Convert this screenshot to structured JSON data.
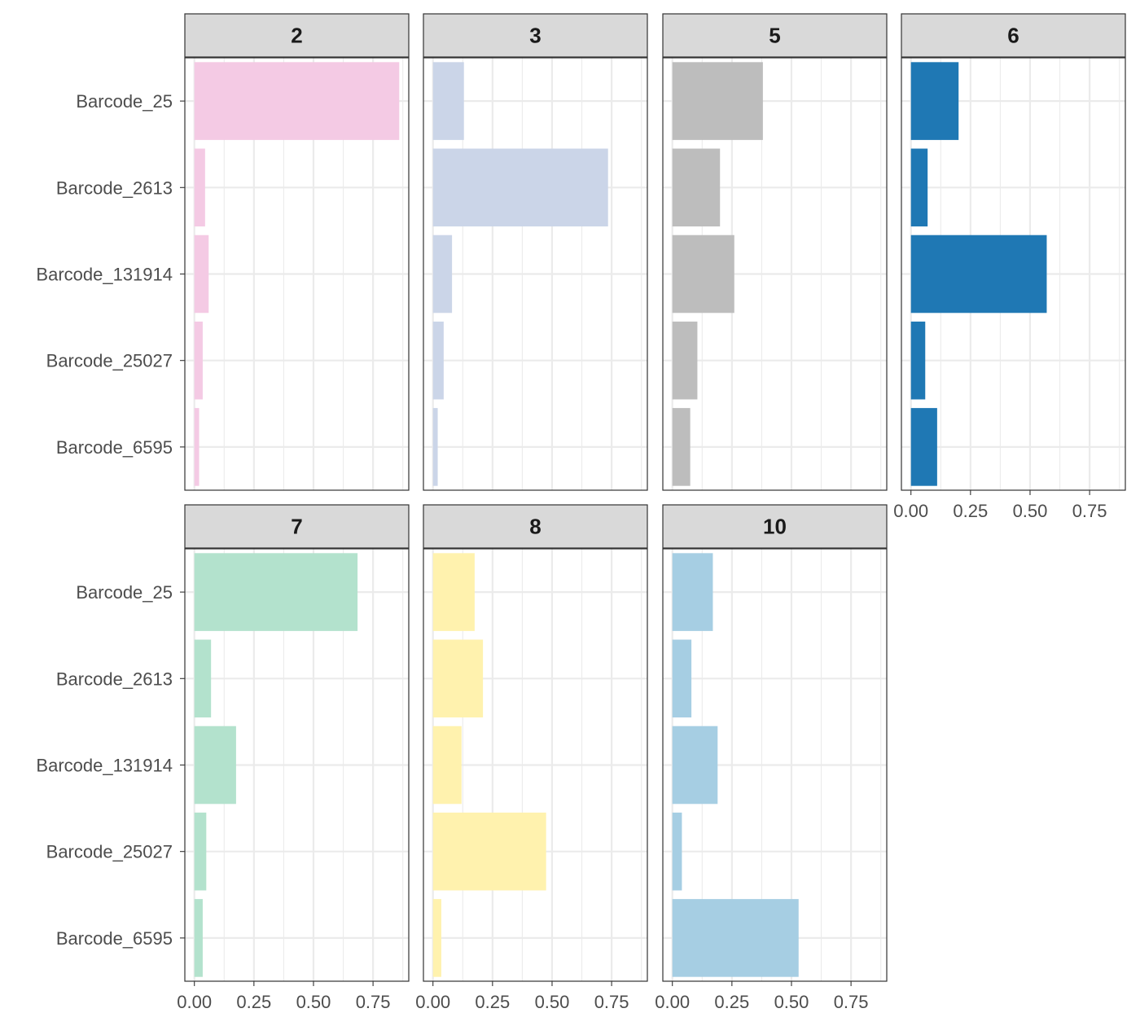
{
  "chart_data": {
    "type": "bar",
    "orientation": "horizontal",
    "facet_layout": "wrap",
    "categories": [
      "Barcode_25",
      "Barcode_2613",
      "Barcode_131914",
      "Barcode_25027",
      "Barcode_6595"
    ],
    "xlim": [
      -0.04,
      0.9
    ],
    "x_ticks": [
      0.0,
      0.25,
      0.5,
      0.75
    ],
    "x_tick_labels": [
      "0.00",
      "0.25",
      "0.50",
      "0.75"
    ],
    "grid": true,
    "title": "",
    "xlabel": "",
    "ylabel": "",
    "panels": [
      {
        "label": "2",
        "color": "#f4cae4",
        "values": [
          0.86,
          0.045,
          0.06,
          0.035,
          0.02
        ]
      },
      {
        "label": "3",
        "color": "#cbd5e8",
        "values": [
          0.13,
          0.735,
          0.08,
          0.045,
          0.02
        ]
      },
      {
        "label": "5",
        "color": "#bdbdbd",
        "values": [
          0.38,
          0.2,
          0.26,
          0.105,
          0.075
        ]
      },
      {
        "label": "6",
        "color": "#1f78b4",
        "values": [
          0.2,
          0.07,
          0.57,
          0.06,
          0.11
        ]
      },
      {
        "label": "7",
        "color": "#b3e2cd",
        "values": [
          0.685,
          0.07,
          0.175,
          0.05,
          0.035
        ]
      },
      {
        "label": "8",
        "color": "#fff2ae",
        "values": [
          0.175,
          0.21,
          0.12,
          0.475,
          0.035
        ]
      },
      {
        "label": "10",
        "color": "#a6cee3",
        "values": [
          0.17,
          0.08,
          0.19,
          0.04,
          0.53
        ]
      }
    ]
  }
}
